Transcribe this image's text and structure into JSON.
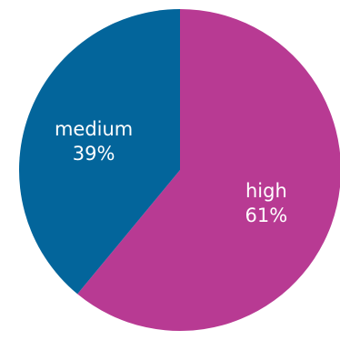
{
  "chart_data": {
    "type": "pie",
    "slices": [
      {
        "label": "high",
        "value": 61,
        "display": "61%",
        "color": "#b83a93"
      },
      {
        "label": "medium",
        "value": 39,
        "display": "39%",
        "color": "#03659b"
      }
    ],
    "start": "top",
    "direction": "clockwise",
    "legend": "none"
  }
}
